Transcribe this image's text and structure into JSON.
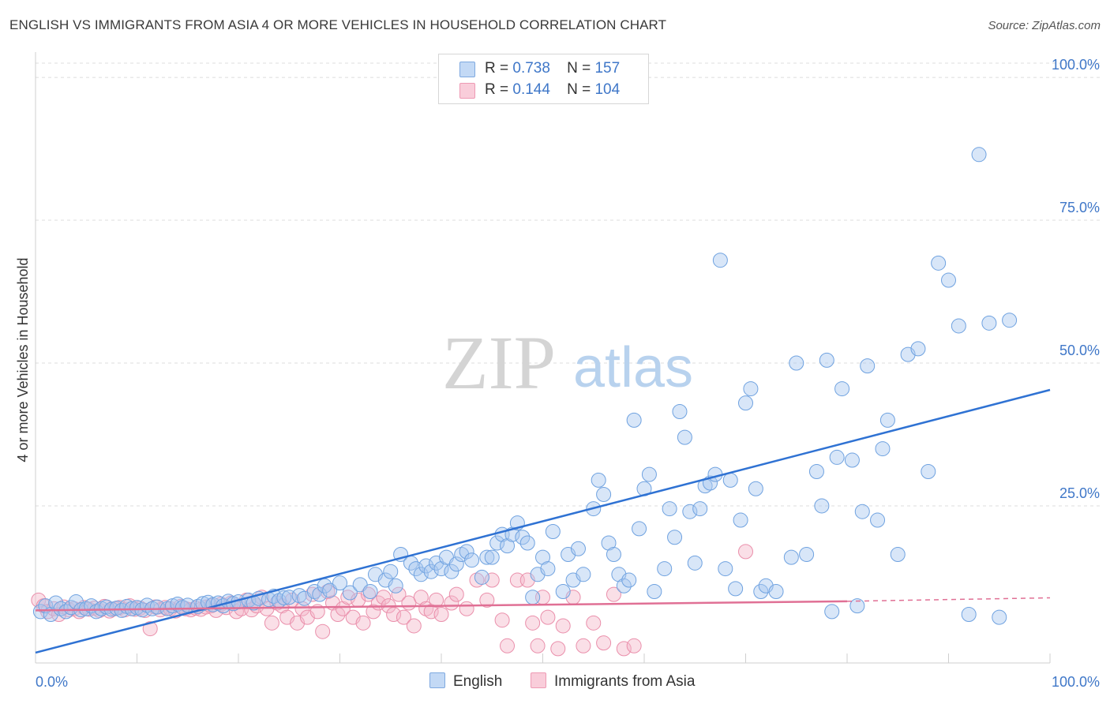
{
  "header": {
    "title": "ENGLISH VS IMMIGRANTS FROM ASIA 4 OR MORE VEHICLES IN HOUSEHOLD CORRELATION CHART",
    "source": "Source: ZipAtlas.com"
  },
  "watermark": {
    "zip": "ZIP",
    "atlas": "atlas"
  },
  "legend": {
    "rows": [
      {
        "r_label": "R =",
        "r_value": "0.738",
        "n_label": "N =",
        "n_value": "157",
        "color": "#a8c8f0"
      },
      {
        "r_label": "R =",
        "r_value": "0.144",
        "n_label": "N =",
        "n_value": "104",
        "color": "#f5b8ca"
      }
    ]
  },
  "bottom_legend": {
    "english": "English",
    "asia": "Immigrants from Asia"
  },
  "chart_data": {
    "type": "scatter",
    "title": "ENGLISH VS IMMIGRANTS FROM ASIA 4 OR MORE VEHICLES IN HOUSEHOLD CORRELATION CHART",
    "xlabel": "",
    "ylabel": "4 or more Vehicles in Household",
    "xlim": [
      0,
      100
    ],
    "ylim": [
      -2.5,
      102.5
    ],
    "x_tick_labels": [
      "0.0%",
      "100.0%"
    ],
    "y_ticks": [
      25,
      50,
      75,
      100
    ],
    "y_tick_labels": [
      "25.0%",
      "50.0%",
      "75.0%",
      "100.0%"
    ],
    "grid": true,
    "legend_position": "top-center",
    "colors": {
      "english": "#6fa2e0",
      "english_fill": "#a8c8f0",
      "english_line": "#2f72d3",
      "asia": "#ea8fab",
      "asia_fill": "#f5b8ca",
      "asia_line": "#e07095"
    },
    "series": [
      {
        "name": "English",
        "trend": {
          "x": [
            0,
            100
          ],
          "y": [
            -0.7,
            45.3
          ]
        },
        "points": [
          [
            0.5,
            6.5
          ],
          [
            1.0,
            7.5
          ],
          [
            1.5,
            6.0
          ],
          [
            2.0,
            8.0
          ],
          [
            2.5,
            7.0
          ],
          [
            3.0,
            6.5
          ],
          [
            3.5,
            7.2
          ],
          [
            4.0,
            8.2
          ],
          [
            4.5,
            6.8
          ],
          [
            5.0,
            7.0
          ],
          [
            5.5,
            7.5
          ],
          [
            6.0,
            6.5
          ],
          [
            6.5,
            7.0
          ],
          [
            7.0,
            7.3
          ],
          [
            7.5,
            6.9
          ],
          [
            8.0,
            7.1
          ],
          [
            8.5,
            6.7
          ],
          [
            9.0,
            7.4
          ],
          [
            9.5,
            7.0
          ],
          [
            10.0,
            7.2
          ],
          [
            10.5,
            6.8
          ],
          [
            11.0,
            7.6
          ],
          [
            11.5,
            7.0
          ],
          [
            12.0,
            7.3
          ],
          [
            13.0,
            7.0
          ],
          [
            13.5,
            7.5
          ],
          [
            14.0,
            7.8
          ],
          [
            14.5,
            7.2
          ],
          [
            15.0,
            7.6
          ],
          [
            16.0,
            7.4
          ],
          [
            16.5,
            7.9
          ],
          [
            17.0,
            8.1
          ],
          [
            17.5,
            7.7
          ],
          [
            18.0,
            8.0
          ],
          [
            18.5,
            7.5
          ],
          [
            19.0,
            8.3
          ],
          [
            19.5,
            7.9
          ],
          [
            20.0,
            8.2
          ],
          [
            21.0,
            8.5
          ],
          [
            21.5,
            8.0
          ],
          [
            22.0,
            8.8
          ],
          [
            23.0,
            8.6
          ],
          [
            23.5,
            9.2
          ],
          [
            24.0,
            8.4
          ],
          [
            24.5,
            8.9
          ],
          [
            25.0,
            9.0
          ],
          [
            26.0,
            9.3
          ],
          [
            26.5,
            8.8
          ],
          [
            27.5,
            10.0
          ],
          [
            28.0,
            9.5
          ],
          [
            28.5,
            11.0
          ],
          [
            29.0,
            10.2
          ],
          [
            30.0,
            11.5
          ],
          [
            31.0,
            9.8
          ],
          [
            32.0,
            11.2
          ],
          [
            33.0,
            10.0
          ],
          [
            33.5,
            13.0
          ],
          [
            34.5,
            12.0
          ],
          [
            35.0,
            13.5
          ],
          [
            35.5,
            11.0
          ],
          [
            36.0,
            16.5
          ],
          [
            37.0,
            15.0
          ],
          [
            37.5,
            14.0
          ],
          [
            38.0,
            13.0
          ],
          [
            38.5,
            14.5
          ],
          [
            39.0,
            13.5
          ],
          [
            39.5,
            15.0
          ],
          [
            40.0,
            14.0
          ],
          [
            40.5,
            16.0
          ],
          [
            41.0,
            13.5
          ],
          [
            41.5,
            14.8
          ],
          [
            42.0,
            16.5
          ],
          [
            42.5,
            17.0
          ],
          [
            43.0,
            15.5
          ],
          [
            44.0,
            12.5
          ],
          [
            44.5,
            16.0
          ],
          [
            45.0,
            16.0
          ],
          [
            45.5,
            18.5
          ],
          [
            46.0,
            20.0
          ],
          [
            46.5,
            18.0
          ],
          [
            47.0,
            20.0
          ],
          [
            47.5,
            22.0
          ],
          [
            48.0,
            19.5
          ],
          [
            48.5,
            18.5
          ],
          [
            49.0,
            9.0
          ],
          [
            49.5,
            13.0
          ],
          [
            50.0,
            16.0
          ],
          [
            50.5,
            14.0
          ],
          [
            51.0,
            20.5
          ],
          [
            52.0,
            10.0
          ],
          [
            52.5,
            16.5
          ],
          [
            53.0,
            12.0
          ],
          [
            53.5,
            17.5
          ],
          [
            54.0,
            13.0
          ],
          [
            55.0,
            24.5
          ],
          [
            55.5,
            29.5
          ],
          [
            56.0,
            27.0
          ],
          [
            56.5,
            18.5
          ],
          [
            57.0,
            16.5
          ],
          [
            57.5,
            13.0
          ],
          [
            58.0,
            11.0
          ],
          [
            58.5,
            12.0
          ],
          [
            59.0,
            40.0
          ],
          [
            59.5,
            21.0
          ],
          [
            60.0,
            28.0
          ],
          [
            60.5,
            30.5
          ],
          [
            61.0,
            10.0
          ],
          [
            62.0,
            14.0
          ],
          [
            62.5,
            24.5
          ],
          [
            63.0,
            19.5
          ],
          [
            63.5,
            41.5
          ],
          [
            64.0,
            37.0
          ],
          [
            64.5,
            24.0
          ],
          [
            65.0,
            15.0
          ],
          [
            65.5,
            24.5
          ],
          [
            66.0,
            28.5
          ],
          [
            66.5,
            29.0
          ],
          [
            67.0,
            30.5
          ],
          [
            67.5,
            68.0
          ],
          [
            68.0,
            14.0
          ],
          [
            68.5,
            29.5
          ],
          [
            69.0,
            10.5
          ],
          [
            69.5,
            22.5
          ],
          [
            70.0,
            43.0
          ],
          [
            70.5,
            45.5
          ],
          [
            71.0,
            28.0
          ],
          [
            71.5,
            10.0
          ],
          [
            72.0,
            11.0
          ],
          [
            73.0,
            10.0
          ],
          [
            74.5,
            16.0
          ],
          [
            75.0,
            50.0
          ],
          [
            76.0,
            16.5
          ],
          [
            77.0,
            31.0
          ],
          [
            77.5,
            25.0
          ],
          [
            78.0,
            50.5
          ],
          [
            78.5,
            6.5
          ],
          [
            79.0,
            33.5
          ],
          [
            79.5,
            45.5
          ],
          [
            80.5,
            33.0
          ],
          [
            81.0,
            7.5
          ],
          [
            81.5,
            24.0
          ],
          [
            82.0,
            49.5
          ],
          [
            83.0,
            22.5
          ],
          [
            83.5,
            35.0
          ],
          [
            84.0,
            40.0
          ],
          [
            85.0,
            16.5
          ],
          [
            86.0,
            51.5
          ],
          [
            87.0,
            52.5
          ],
          [
            88.0,
            31.0
          ],
          [
            89.0,
            67.5
          ],
          [
            90.0,
            64.5
          ],
          [
            91.0,
            56.5
          ],
          [
            92.0,
            6.0
          ],
          [
            93.0,
            86.5
          ],
          [
            94.0,
            57.0
          ],
          [
            95.0,
            5.5
          ],
          [
            96.0,
            57.5
          ]
        ]
      },
      {
        "name": "Immigrants from Asia",
        "trend": {
          "x": [
            0,
            80
          ],
          "y": [
            6.7,
            8.3
          ]
        },
        "trend_extension": {
          "x": [
            80,
            100
          ],
          "y": [
            8.3,
            8.9
          ]
        },
        "points": [
          [
            0.3,
            8.5
          ],
          [
            0.8,
            7.5
          ],
          [
            1.2,
            6.5
          ],
          [
            1.8,
            7.0
          ],
          [
            2.3,
            6.0
          ],
          [
            2.8,
            7.3
          ],
          [
            3.3,
            6.8
          ],
          [
            3.8,
            7.0
          ],
          [
            4.3,
            6.5
          ],
          [
            4.8,
            7.2
          ],
          [
            5.3,
            6.9
          ],
          [
            5.8,
            7.1
          ],
          [
            6.3,
            6.7
          ],
          [
            6.8,
            7.4
          ],
          [
            7.3,
            6.6
          ],
          [
            7.8,
            7.0
          ],
          [
            8.3,
            7.2
          ],
          [
            8.8,
            6.8
          ],
          [
            9.3,
            7.5
          ],
          [
            9.8,
            6.9
          ],
          [
            10.3,
            7.1
          ],
          [
            10.8,
            6.7
          ],
          [
            11.3,
            3.5
          ],
          [
            11.8,
            7.3
          ],
          [
            12.3,
            6.8
          ],
          [
            12.8,
            7.2
          ],
          [
            13.3,
            7.0
          ],
          [
            13.8,
            6.6
          ],
          [
            14.3,
            7.4
          ],
          [
            14.8,
            7.0
          ],
          [
            15.3,
            6.8
          ],
          [
            15.8,
            7.1
          ],
          [
            16.3,
            6.9
          ],
          [
            16.8,
            7.3
          ],
          [
            17.3,
            7.5
          ],
          [
            17.8,
            6.7
          ],
          [
            18.3,
            7.8
          ],
          [
            18.8,
            7.2
          ],
          [
            19.3,
            8.0
          ],
          [
            19.8,
            6.5
          ],
          [
            20.3,
            7.0
          ],
          [
            20.8,
            8.5
          ],
          [
            21.3,
            6.8
          ],
          [
            21.8,
            7.5
          ],
          [
            22.3,
            9.0
          ],
          [
            22.8,
            7.0
          ],
          [
            23.3,
            4.5
          ],
          [
            23.8,
            8.0
          ],
          [
            24.3,
            7.5
          ],
          [
            24.8,
            5.5
          ],
          [
            25.3,
            8.5
          ],
          [
            25.8,
            4.5
          ],
          [
            26.3,
            7.0
          ],
          [
            26.8,
            5.5
          ],
          [
            27.3,
            9.5
          ],
          [
            27.8,
            6.5
          ],
          [
            28.3,
            3.0
          ],
          [
            28.8,
            10.0
          ],
          [
            29.3,
            8.0
          ],
          [
            29.8,
            6.0
          ],
          [
            30.3,
            7.0
          ],
          [
            30.8,
            9.0
          ],
          [
            31.3,
            5.5
          ],
          [
            31.8,
            8.5
          ],
          [
            32.3,
            4.5
          ],
          [
            32.8,
            9.5
          ],
          [
            33.3,
            6.5
          ],
          [
            33.8,
            8.0
          ],
          [
            34.3,
            9.0
          ],
          [
            34.8,
            7.5
          ],
          [
            35.3,
            6.0
          ],
          [
            35.8,
            9.5
          ],
          [
            36.3,
            5.5
          ],
          [
            36.8,
            8.0
          ],
          [
            37.3,
            4.0
          ],
          [
            38.0,
            9.0
          ],
          [
            38.5,
            7.0
          ],
          [
            39.0,
            6.5
          ],
          [
            39.5,
            8.5
          ],
          [
            40.0,
            6.0
          ],
          [
            41.0,
            8.0
          ],
          [
            41.5,
            9.5
          ],
          [
            42.5,
            7.0
          ],
          [
            43.5,
            12.0
          ],
          [
            44.5,
            8.5
          ],
          [
            45.0,
            12.0
          ],
          [
            46.0,
            5.0
          ],
          [
            46.5,
            0.5
          ],
          [
            47.5,
            12.0
          ],
          [
            48.5,
            12.0
          ],
          [
            49.0,
            4.5
          ],
          [
            49.5,
            0.5
          ],
          [
            50.0,
            9.0
          ],
          [
            50.5,
            5.5
          ],
          [
            51.5,
            0.0
          ],
          [
            52.0,
            4.0
          ],
          [
            53.0,
            9.0
          ],
          [
            54.0,
            0.5
          ],
          [
            55.0,
            4.5
          ],
          [
            56.0,
            1.0
          ],
          [
            57.0,
            9.5
          ],
          [
            58.0,
            0.0
          ],
          [
            59.0,
            0.5
          ],
          [
            70.0,
            17.0
          ]
        ]
      }
    ]
  }
}
